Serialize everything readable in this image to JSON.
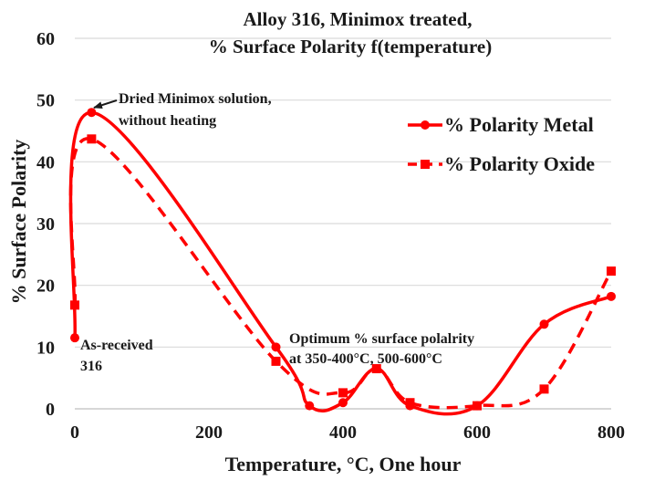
{
  "chart_data": {
    "type": "line",
    "title_lines": [
      "Alloy 316, Minimox treated,",
      "% Surface Polarity f(temperature)"
    ],
    "xlabel": "Temperature, °C, One hour",
    "ylabel": "% Surface Polarity",
    "xlim": [
      0,
      800
    ],
    "ylim": [
      0,
      60
    ],
    "xticks": [
      0,
      200,
      400,
      600,
      800
    ],
    "yticks": [
      0,
      10,
      20,
      30,
      40,
      50,
      60
    ],
    "grid": "horizontal",
    "legend_position": "top-right",
    "series": [
      {
        "name": "% Polarity Metal",
        "style": "solid",
        "marker": "circle",
        "color": "#ff0000",
        "points": [
          [
            0,
            11.5
          ],
          [
            25,
            48
          ],
          [
            300,
            10
          ],
          [
            350,
            0.5
          ],
          [
            400,
            1
          ],
          [
            450,
            6.5
          ],
          [
            500,
            0.5
          ],
          [
            600,
            0.5
          ],
          [
            700,
            13.7
          ],
          [
            800,
            18.2
          ]
        ]
      },
      {
        "name": "% Polarity Oxide",
        "style": "dashed",
        "marker": "square",
        "color": "#ff0000",
        "points": [
          [
            0,
            16.8
          ],
          [
            25,
            43.7
          ],
          [
            300,
            7.7
          ],
          [
            400,
            2.6
          ],
          [
            450,
            6.5
          ],
          [
            500,
            1
          ],
          [
            600,
            0.5
          ],
          [
            700,
            3.2
          ],
          [
            800,
            22.3
          ]
        ]
      }
    ],
    "annotations": [
      {
        "id": "dried",
        "lines": [
          "Dried Minimox solution,",
          "without heating"
        ]
      },
      {
        "id": "optimum",
        "lines": [
          "Optimum % surface polalrity",
          "at 350-400°C, 500-600°C"
        ]
      },
      {
        "id": "asreceived",
        "lines": [
          "As-received",
          "316"
        ]
      }
    ]
  }
}
